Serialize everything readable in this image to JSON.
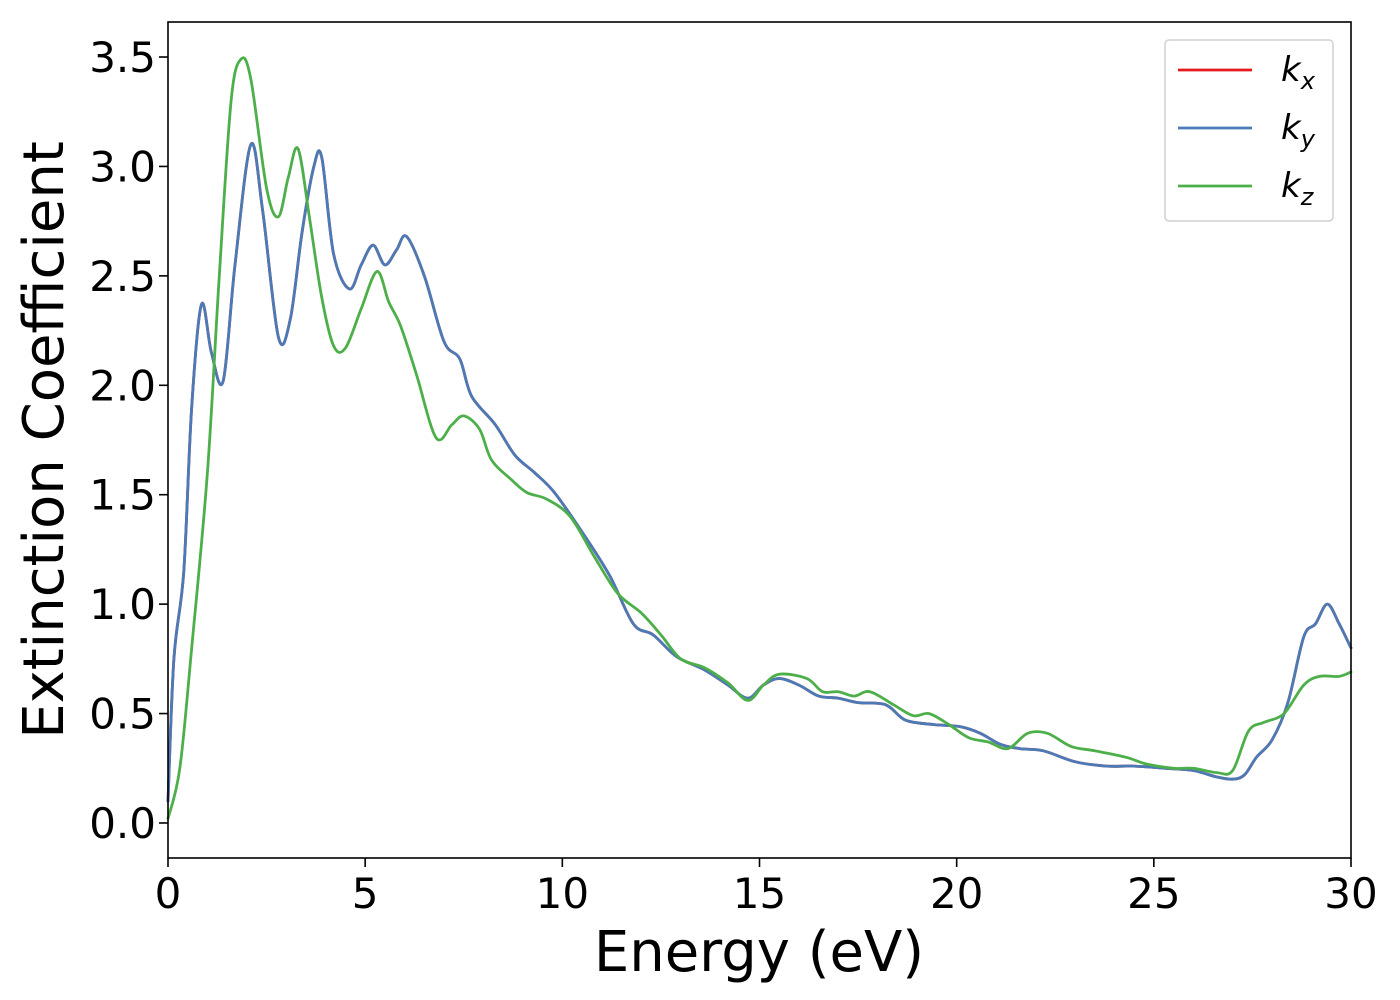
{
  "chart_data": {
    "type": "line",
    "title": "",
    "xlabel": "Energy (eV)",
    "ylabel": "Extinction Coefficient",
    "xlim": [
      0,
      30
    ],
    "ylim": [
      -0.16,
      3.66
    ],
    "xticks": [
      0,
      5,
      10,
      15,
      20,
      25,
      30
    ],
    "xtick_labels": [
      "0",
      "5",
      "10",
      "15",
      "20",
      "25",
      "30"
    ],
    "yticks": [
      0,
      0.5,
      1,
      1.5,
      2,
      2.5,
      3,
      3.5
    ],
    "ytick_labels": [
      "0.0",
      "0.5",
      "1.0",
      "1.5",
      "2.0",
      "2.5",
      "3.0",
      "3.5"
    ],
    "grid": false,
    "legend_position": "top-right",
    "series": [
      {
        "name": "k_x",
        "legend_base": "k",
        "legend_sub": "x",
        "color": "#e41a1c",
        "points": [
          [
            0,
            0.1
          ],
          [
            0.15,
            0.75
          ],
          [
            0.4,
            1.15
          ],
          [
            0.6,
            1.9
          ],
          [
            0.85,
            2.37
          ],
          [
            1.1,
            2.15
          ],
          [
            1.4,
            2.02
          ],
          [
            1.7,
            2.55
          ],
          [
            2.1,
            3.1
          ],
          [
            2.4,
            2.8
          ],
          [
            2.8,
            2.22
          ],
          [
            3.1,
            2.3
          ],
          [
            3.4,
            2.7
          ],
          [
            3.7,
            3.0
          ],
          [
            3.9,
            3.04
          ],
          [
            4.2,
            2.6
          ],
          [
            4.6,
            2.44
          ],
          [
            4.9,
            2.55
          ],
          [
            5.2,
            2.64
          ],
          [
            5.5,
            2.55
          ],
          [
            5.8,
            2.62
          ],
          [
            6.05,
            2.68
          ],
          [
            6.5,
            2.5
          ],
          [
            7.0,
            2.2
          ],
          [
            7.4,
            2.12
          ],
          [
            7.7,
            1.95
          ],
          [
            8.3,
            1.82
          ],
          [
            8.8,
            1.68
          ],
          [
            9.3,
            1.6
          ],
          [
            9.8,
            1.51
          ],
          [
            10.5,
            1.33
          ],
          [
            11.2,
            1.13
          ],
          [
            11.8,
            0.91
          ],
          [
            12.3,
            0.86
          ],
          [
            12.9,
            0.76
          ],
          [
            13.6,
            0.7
          ],
          [
            14.2,
            0.63
          ],
          [
            14.7,
            0.57
          ],
          [
            15.1,
            0.63
          ],
          [
            15.5,
            0.66
          ],
          [
            16.0,
            0.63
          ],
          [
            16.5,
            0.58
          ],
          [
            17.0,
            0.57
          ],
          [
            17.5,
            0.55
          ],
          [
            18.2,
            0.54
          ],
          [
            18.7,
            0.47
          ],
          [
            19.4,
            0.45
          ],
          [
            20.1,
            0.44
          ],
          [
            20.6,
            0.41
          ],
          [
            21.1,
            0.36
          ],
          [
            21.6,
            0.34
          ],
          [
            22.2,
            0.33
          ],
          [
            23.0,
            0.28
          ],
          [
            23.8,
            0.26
          ],
          [
            24.5,
            0.26
          ],
          [
            25.3,
            0.25
          ],
          [
            26.0,
            0.24
          ],
          [
            26.6,
            0.21
          ],
          [
            27.0,
            0.2
          ],
          [
            27.3,
            0.22
          ],
          [
            27.6,
            0.3
          ],
          [
            28.0,
            0.38
          ],
          [
            28.4,
            0.55
          ],
          [
            28.8,
            0.85
          ],
          [
            29.1,
            0.91
          ],
          [
            29.4,
            1.0
          ],
          [
            29.7,
            0.91
          ],
          [
            30,
            0.8
          ]
        ]
      },
      {
        "name": "k_y",
        "legend_base": "k",
        "legend_sub": "y",
        "color": "#4a7bb7",
        "points": [
          [
            0,
            0.1
          ],
          [
            0.15,
            0.75
          ],
          [
            0.4,
            1.15
          ],
          [
            0.6,
            1.9
          ],
          [
            0.85,
            2.37
          ],
          [
            1.1,
            2.15
          ],
          [
            1.4,
            2.02
          ],
          [
            1.7,
            2.55
          ],
          [
            2.1,
            3.1
          ],
          [
            2.4,
            2.8
          ],
          [
            2.8,
            2.22
          ],
          [
            3.1,
            2.3
          ],
          [
            3.4,
            2.7
          ],
          [
            3.7,
            3.0
          ],
          [
            3.9,
            3.04
          ],
          [
            4.2,
            2.6
          ],
          [
            4.6,
            2.44
          ],
          [
            4.9,
            2.55
          ],
          [
            5.2,
            2.64
          ],
          [
            5.5,
            2.55
          ],
          [
            5.8,
            2.62
          ],
          [
            6.05,
            2.68
          ],
          [
            6.5,
            2.5
          ],
          [
            7.0,
            2.2
          ],
          [
            7.4,
            2.12
          ],
          [
            7.7,
            1.95
          ],
          [
            8.3,
            1.82
          ],
          [
            8.8,
            1.68
          ],
          [
            9.3,
            1.6
          ],
          [
            9.8,
            1.51
          ],
          [
            10.5,
            1.33
          ],
          [
            11.2,
            1.13
          ],
          [
            11.8,
            0.91
          ],
          [
            12.3,
            0.86
          ],
          [
            12.9,
            0.76
          ],
          [
            13.6,
            0.7
          ],
          [
            14.2,
            0.63
          ],
          [
            14.7,
            0.57
          ],
          [
            15.1,
            0.63
          ],
          [
            15.5,
            0.66
          ],
          [
            16.0,
            0.63
          ],
          [
            16.5,
            0.58
          ],
          [
            17.0,
            0.57
          ],
          [
            17.5,
            0.55
          ],
          [
            18.2,
            0.54
          ],
          [
            18.7,
            0.47
          ],
          [
            19.4,
            0.45
          ],
          [
            20.1,
            0.44
          ],
          [
            20.6,
            0.41
          ],
          [
            21.1,
            0.36
          ],
          [
            21.6,
            0.34
          ],
          [
            22.2,
            0.33
          ],
          [
            23.0,
            0.28
          ],
          [
            23.8,
            0.26
          ],
          [
            24.5,
            0.26
          ],
          [
            25.3,
            0.25
          ],
          [
            26.0,
            0.24
          ],
          [
            26.6,
            0.21
          ],
          [
            27.0,
            0.2
          ],
          [
            27.3,
            0.22
          ],
          [
            27.6,
            0.3
          ],
          [
            28.0,
            0.38
          ],
          [
            28.4,
            0.55
          ],
          [
            28.8,
            0.85
          ],
          [
            29.1,
            0.91
          ],
          [
            29.4,
            1.0
          ],
          [
            29.7,
            0.91
          ],
          [
            30,
            0.8
          ]
        ]
      },
      {
        "name": "k_z",
        "legend_base": "k",
        "legend_sub": "z",
        "color": "#4daf4a",
        "points": [
          [
            0,
            0.02
          ],
          [
            0.3,
            0.25
          ],
          [
            0.6,
            0.8
          ],
          [
            1.0,
            1.6
          ],
          [
            1.3,
            2.5
          ],
          [
            1.6,
            3.3
          ],
          [
            1.85,
            3.49
          ],
          [
            2.1,
            3.4
          ],
          [
            2.5,
            2.9
          ],
          [
            2.8,
            2.77
          ],
          [
            3.05,
            2.95
          ],
          [
            3.3,
            3.08
          ],
          [
            3.6,
            2.75
          ],
          [
            3.9,
            2.4
          ],
          [
            4.2,
            2.18
          ],
          [
            4.5,
            2.17
          ],
          [
            4.9,
            2.35
          ],
          [
            5.3,
            2.52
          ],
          [
            5.6,
            2.38
          ],
          [
            5.9,
            2.27
          ],
          [
            6.3,
            2.05
          ],
          [
            6.8,
            1.76
          ],
          [
            7.2,
            1.82
          ],
          [
            7.5,
            1.86
          ],
          [
            7.9,
            1.8
          ],
          [
            8.2,
            1.66
          ],
          [
            8.7,
            1.57
          ],
          [
            9.1,
            1.51
          ],
          [
            9.6,
            1.48
          ],
          [
            10.2,
            1.4
          ],
          [
            10.8,
            1.22
          ],
          [
            11.4,
            1.05
          ],
          [
            12.0,
            0.96
          ],
          [
            12.5,
            0.86
          ],
          [
            13.0,
            0.75
          ],
          [
            13.6,
            0.71
          ],
          [
            14.2,
            0.64
          ],
          [
            14.7,
            0.56
          ],
          [
            15.1,
            0.63
          ],
          [
            15.5,
            0.68
          ],
          [
            16.2,
            0.66
          ],
          [
            16.6,
            0.6
          ],
          [
            17.0,
            0.6
          ],
          [
            17.4,
            0.58
          ],
          [
            17.8,
            0.6
          ],
          [
            18.4,
            0.54
          ],
          [
            18.9,
            0.49
          ],
          [
            19.3,
            0.5
          ],
          [
            19.8,
            0.45
          ],
          [
            20.3,
            0.39
          ],
          [
            20.8,
            0.37
          ],
          [
            21.3,
            0.34
          ],
          [
            21.8,
            0.41
          ],
          [
            22.3,
            0.41
          ],
          [
            22.9,
            0.35
          ],
          [
            23.5,
            0.33
          ],
          [
            24.3,
            0.3
          ],
          [
            24.8,
            0.27
          ],
          [
            25.5,
            0.25
          ],
          [
            26.0,
            0.25
          ],
          [
            26.6,
            0.23
          ],
          [
            27.0,
            0.24
          ],
          [
            27.4,
            0.42
          ],
          [
            27.8,
            0.46
          ],
          [
            28.3,
            0.5
          ],
          [
            28.8,
            0.63
          ],
          [
            29.2,
            0.67
          ],
          [
            29.7,
            0.67
          ],
          [
            30,
            0.69
          ]
        ]
      }
    ]
  }
}
